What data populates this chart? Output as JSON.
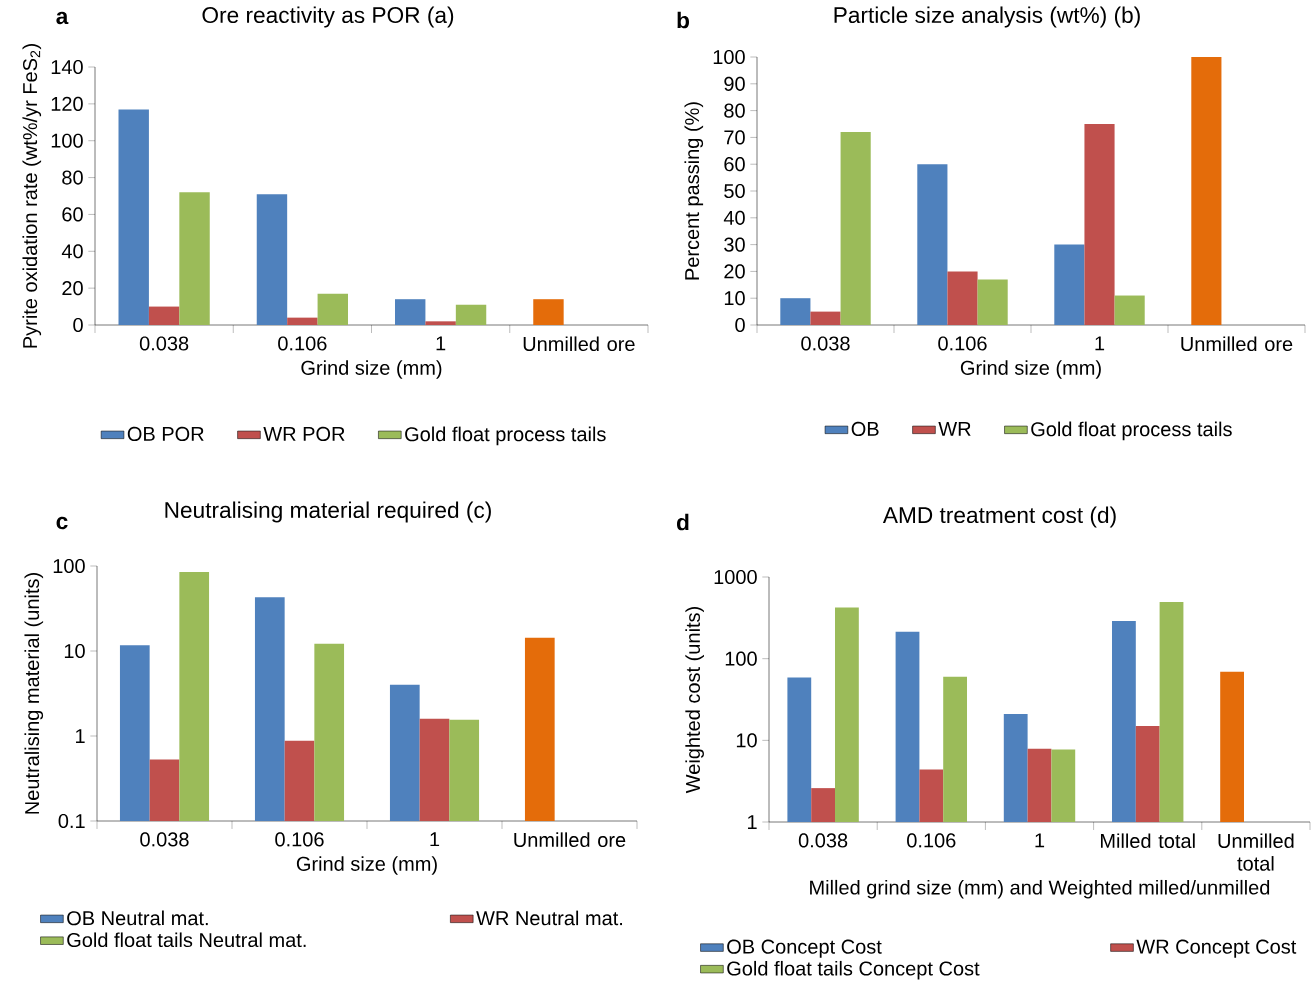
{
  "chart_data": [
    {
      "type": "bar",
      "title": "Ore reactivity as POR (a)",
      "annotations": [
        "a"
      ],
      "xlabel": "Grind size (mm)",
      "ylabel": "Pyrite oxidation rate (wt%/yr FeS$_{2}$)",
      "categories": [
        "0.038",
        "0.106",
        "1",
        "Unmilled ore"
      ],
      "series": [
        {
          "name": "OB POR",
          "color": "#4f81bd",
          "colors": [
            "#4f81bd",
            "#4f81bd",
            "#4f81bd",
            "#e46c0a"
          ],
          "values": [
            117,
            71,
            14,
            14
          ]
        },
        {
          "name": "WR POR",
          "color": "#c0504d",
          "values": [
            10,
            4,
            2,
            null
          ]
        },
        {
          "name": "Gold float process tails",
          "color": "#9bbb59",
          "values": [
            72,
            17,
            11,
            null
          ]
        }
      ],
      "ylim": [
        0,
        140
      ],
      "yticks": [
        0,
        20,
        40,
        60,
        80,
        100,
        120,
        140
      ],
      "legend": "bottom"
    },
    {
      "type": "bar",
      "title": "Particle size analysis (wt%) (b)",
      "annotations": [
        "b"
      ],
      "xlabel": "Grind size (mm)",
      "ylabel": "Percent passing (%)",
      "categories": [
        "0.038",
        "0.106",
        "1",
        "Unmilled ore"
      ],
      "series": [
        {
          "name": "OB",
          "color": "#4f81bd",
          "colors": [
            "#4f81bd",
            "#4f81bd",
            "#4f81bd",
            "#e46c0a"
          ],
          "values": [
            10,
            60,
            30,
            100
          ]
        },
        {
          "name": "WR",
          "color": "#c0504d",
          "values": [
            5,
            20,
            75,
            null
          ]
        },
        {
          "name": "Gold float process tails",
          "color": "#9bbb59",
          "values": [
            72,
            17,
            11,
            null
          ]
        }
      ],
      "ylim": [
        0,
        100
      ],
      "yticks": [
        0,
        10,
        20,
        30,
        40,
        50,
        60,
        70,
        80,
        90,
        100
      ],
      "legend": "bottom"
    },
    {
      "type": "bar",
      "title": "Neutralising material required (c)",
      "annotations": [
        "c"
      ],
      "xlabel": "Grind size (mm)",
      "ylabel": "Neutralising material (units)",
      "categories": [
        "0.038",
        "0.106",
        "1",
        "Unmilled ore"
      ],
      "series": [
        {
          "name": "OB Neutral mat.",
          "color": "#4f81bd",
          "colors": [
            "#4f81bd",
            "#4f81bd",
            "#4f81bd",
            "#e46c0a"
          ],
          "values": [
            11.7,
            43,
            4.0,
            14.3
          ]
        },
        {
          "name": "WR Neutral mat.",
          "color": "#c0504d",
          "values": [
            0.53,
            0.88,
            1.6,
            null
          ]
        },
        {
          "name": "Gold float tails Neutral mat.",
          "color": "#9bbb59",
          "values": [
            85,
            12.2,
            1.55,
            null
          ]
        }
      ],
      "log": true,
      "ylim": [
        0.1,
        100
      ],
      "yticks": [
        0.1,
        1,
        10,
        100
      ],
      "legend": "bottom"
    },
    {
      "type": "bar",
      "title": "AMD treatment cost (d)",
      "annotations": [
        "d"
      ],
      "xlabel": "Milled grind size (mm) and Weighted milled/unmilled",
      "ylabel": "Weighted cost (units)",
      "categories": [
        "0.038",
        "0.106",
        "1",
        "Milled total",
        "Unmilled total"
      ],
      "series": [
        {
          "name": "OB Concept Cost",
          "color": "#4f81bd",
          "colors": [
            "#4f81bd",
            "#4f81bd",
            "#4f81bd",
            "#4f81bd",
            "#e46c0a"
          ],
          "values": [
            59,
            214,
            21,
            290,
            69
          ]
        },
        {
          "name": "WR Concept Cost",
          "color": "#c0504d",
          "values": [
            2.6,
            4.4,
            7.9,
            15,
            null
          ]
        },
        {
          "name": "Gold float tails Concept Cost",
          "color": "#9bbb59",
          "values": [
            423,
            60,
            7.7,
            493,
            null
          ]
        }
      ],
      "log": true,
      "ylim": [
        1,
        1000
      ],
      "yticks": [
        1,
        10,
        100,
        1000
      ],
      "legend": "bottom"
    }
  ]
}
